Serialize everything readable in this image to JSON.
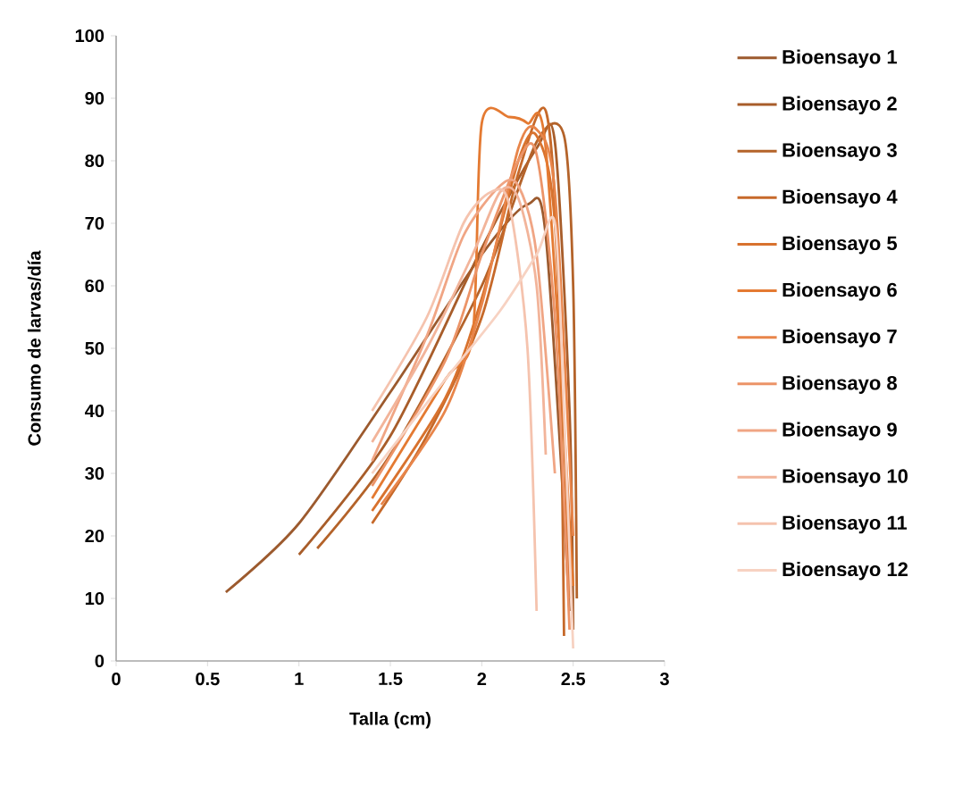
{
  "chart_data": {
    "type": "line",
    "xlabel": "Talla (cm)",
    "ylabel": "Consumo de larvas/día",
    "xlim": [
      0,
      3
    ],
    "ylim": [
      0,
      100
    ],
    "xticks": [
      0,
      0.5,
      1,
      1.5,
      2,
      2.5,
      3
    ],
    "yticks": [
      0,
      10,
      20,
      30,
      40,
      50,
      60,
      70,
      80,
      90,
      100
    ],
    "legend": "right",
    "line_style": "solid",
    "series": [
      {
        "name": "Bioensayo 1",
        "color": "#9c5a2e",
        "x": [
          0.6,
          1.0,
          1.5,
          2.0,
          2.25,
          2.35,
          2.48
        ],
        "values": [
          11,
          22,
          43,
          65,
          73,
          68,
          8
        ]
      },
      {
        "name": "Bioensayo 2",
        "color": "#a85d2a",
        "x": [
          1.0,
          1.5,
          2.0,
          2.3,
          2.4,
          2.48,
          2.5
        ],
        "values": [
          17,
          36,
          66,
          82,
          83,
          40,
          5
        ]
      },
      {
        "name": "Bioensayo 3",
        "color": "#b4632a",
        "x": [
          1.1,
          1.5,
          2.0,
          2.3,
          2.45,
          2.5,
          2.52
        ],
        "values": [
          18,
          33,
          60,
          83,
          84,
          60,
          10
        ]
      },
      {
        "name": "Bioensayo 4",
        "color": "#c6692a",
        "x": [
          1.4,
          1.7,
          2.0,
          2.2,
          2.35,
          2.42,
          2.45
        ],
        "values": [
          22,
          36,
          55,
          78,
          88,
          60,
          4
        ]
      },
      {
        "name": "Bioensayo 5",
        "color": "#d8722e",
        "x": [
          1.4,
          1.8,
          2.0,
          2.2,
          2.3,
          2.4,
          2.48
        ],
        "values": [
          24,
          42,
          58,
          80,
          84,
          70,
          10
        ]
      },
      {
        "name": "Bioensayo 6",
        "color": "#e47a32",
        "x": [
          1.4,
          1.8,
          1.95,
          2.0,
          2.15,
          2.25,
          2.35,
          2.5
        ],
        "values": [
          26,
          45,
          52,
          86,
          87,
          86,
          82,
          12
        ]
      },
      {
        "name": "Bioensayo 7",
        "color": "#e8854a",
        "x": [
          1.45,
          1.8,
          2.0,
          2.2,
          2.3,
          2.4,
          2.5
        ],
        "values": [
          25,
          40,
          57,
          82,
          85,
          75,
          20
        ]
      },
      {
        "name": "Bioensayo 8",
        "color": "#ec9468",
        "x": [
          1.4,
          1.8,
          2.0,
          2.2,
          2.3,
          2.4,
          2.48
        ],
        "values": [
          28,
          48,
          65,
          80,
          81,
          55,
          5
        ]
      },
      {
        "name": "Bioensayo 9",
        "color": "#f0a584",
        "x": [
          1.4,
          1.7,
          1.9,
          2.1,
          2.2,
          2.3,
          2.4
        ],
        "values": [
          32,
          52,
          68,
          76,
          76,
          65,
          30
        ]
      },
      {
        "name": "Bioensayo 10",
        "color": "#f2b49a",
        "x": [
          1.4,
          1.7,
          1.95,
          2.1,
          2.2,
          2.3,
          2.35
        ],
        "values": [
          35,
          50,
          65,
          75,
          74,
          60,
          33
        ]
      },
      {
        "name": "Bioensayo 11",
        "color": "#f5c3ae",
        "x": [
          1.4,
          1.7,
          1.9,
          2.05,
          2.15,
          2.25,
          2.3
        ],
        "values": [
          40,
          55,
          70,
          75,
          73,
          50,
          8
        ]
      },
      {
        "name": "Bioensayo 12",
        "color": "#f7d2c2",
        "x": [
          1.4,
          1.8,
          2.1,
          2.3,
          2.4,
          2.45,
          2.5
        ],
        "values": [
          30,
          45,
          56,
          65,
          70,
          40,
          2
        ]
      }
    ]
  }
}
